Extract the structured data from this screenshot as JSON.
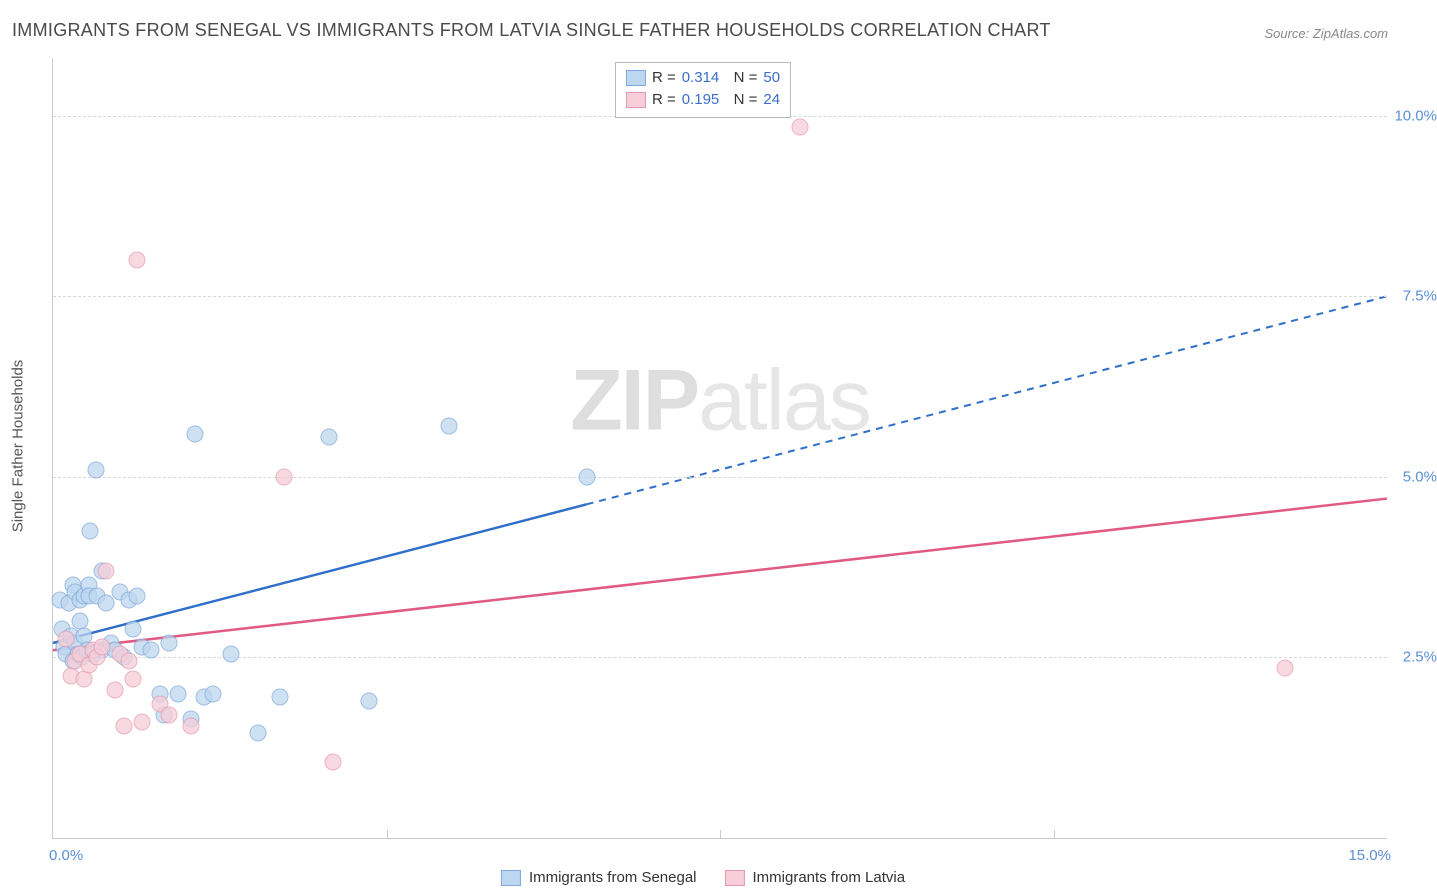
{
  "title": "IMMIGRANTS FROM SENEGAL VS IMMIGRANTS FROM LATVIA SINGLE FATHER HOUSEHOLDS CORRELATION CHART",
  "source": "Source: ZipAtlas.com",
  "y_label": "Single Father Households",
  "watermark_a": "ZIP",
  "watermark_b": "atlas",
  "chart": {
    "type": "scatter-with-regression",
    "background_color": "#ffffff",
    "grid_color": "#d8d8d8",
    "axis_color": "#cccccc",
    "tick_color": "#5b8fd6",
    "tick_fontsize": 15,
    "xlim": [
      0,
      15
    ],
    "ylim": [
      0,
      10.8
    ],
    "y_ticks": [
      {
        "v": 2.5,
        "label": "2.5%"
      },
      {
        "v": 5.0,
        "label": "5.0%"
      },
      {
        "v": 7.5,
        "label": "7.5%"
      },
      {
        "v": 10.0,
        "label": "10.0%"
      }
    ],
    "x_tick_left": "0.0%",
    "x_tick_right": "15.0%",
    "x_subticks": [
      3.75,
      7.5,
      11.25
    ],
    "point_radius": 7.5,
    "series": [
      {
        "name": "Immigrants from Senegal",
        "color_fill": "#bdd7f0",
        "color_stroke": "#7fa9d8",
        "line_color": "#2f6fc9",
        "r": "0.314",
        "n": "50",
        "regression": {
          "x1": 0,
          "y1": 2.7,
          "x2": 6.0,
          "y2": 4.55,
          "x3": 15.0,
          "y3": 7.5,
          "solid_until": 6.0
        },
        "points": [
          {
            "x": 0.08,
            "y": 3.3
          },
          {
            "x": 0.1,
            "y": 2.9
          },
          {
            "x": 0.12,
            "y": 2.65
          },
          {
            "x": 0.15,
            "y": 2.55
          },
          {
            "x": 0.18,
            "y": 3.25
          },
          {
            "x": 0.2,
            "y": 2.8
          },
          {
            "x": 0.22,
            "y": 2.45
          },
          {
            "x": 0.22,
            "y": 3.5
          },
          {
            "x": 0.25,
            "y": 2.7
          },
          {
            "x": 0.25,
            "y": 3.4
          },
          {
            "x": 0.28,
            "y": 2.55
          },
          {
            "x": 0.3,
            "y": 3.3
          },
          {
            "x": 0.3,
            "y": 3.0
          },
          {
            "x": 0.33,
            "y": 2.5
          },
          {
            "x": 0.35,
            "y": 2.8
          },
          {
            "x": 0.35,
            "y": 3.35
          },
          {
            "x": 0.38,
            "y": 2.6
          },
          {
            "x": 0.4,
            "y": 3.5
          },
          {
            "x": 0.4,
            "y": 3.35
          },
          {
            "x": 0.42,
            "y": 4.25
          },
          {
            "x": 0.45,
            "y": 2.55
          },
          {
            "x": 0.48,
            "y": 5.1
          },
          {
            "x": 0.5,
            "y": 3.35
          },
          {
            "x": 0.55,
            "y": 2.6
          },
          {
            "x": 0.55,
            "y": 3.7
          },
          {
            "x": 0.6,
            "y": 3.25
          },
          {
            "x": 0.65,
            "y": 2.7
          },
          {
            "x": 0.7,
            "y": 2.6
          },
          {
            "x": 0.75,
            "y": 3.4
          },
          {
            "x": 0.8,
            "y": 2.5
          },
          {
            "x": 0.85,
            "y": 3.3
          },
          {
            "x": 0.9,
            "y": 2.9
          },
          {
            "x": 0.95,
            "y": 3.35
          },
          {
            "x": 1.0,
            "y": 2.65
          },
          {
            "x": 1.1,
            "y": 2.6
          },
          {
            "x": 1.2,
            "y": 2.0
          },
          {
            "x": 1.25,
            "y": 1.7
          },
          {
            "x": 1.3,
            "y": 2.7
          },
          {
            "x": 1.4,
            "y": 2.0
          },
          {
            "x": 1.55,
            "y": 1.65
          },
          {
            "x": 1.6,
            "y": 5.6
          },
          {
            "x": 1.7,
            "y": 1.95
          },
          {
            "x": 1.8,
            "y": 2.0
          },
          {
            "x": 2.0,
            "y": 2.55
          },
          {
            "x": 2.3,
            "y": 1.45
          },
          {
            "x": 2.55,
            "y": 1.95
          },
          {
            "x": 3.1,
            "y": 5.55
          },
          {
            "x": 3.55,
            "y": 1.9
          },
          {
            "x": 4.45,
            "y": 5.7
          },
          {
            "x": 6.0,
            "y": 5.0
          }
        ]
      },
      {
        "name": "Immigrants from Latvia",
        "color_fill": "#f6cdd8",
        "color_stroke": "#e39bb0",
        "line_color": "#e05a82",
        "r": "0.195",
        "n": "24",
        "regression": {
          "x1": 0,
          "y1": 2.6,
          "x2": 15.0,
          "y2": 4.7,
          "solid_until": 15.0
        },
        "points": [
          {
            "x": 0.15,
            "y": 2.75
          },
          {
            "x": 0.2,
            "y": 2.25
          },
          {
            "x": 0.25,
            "y": 2.45
          },
          {
            "x": 0.3,
            "y": 2.55
          },
          {
            "x": 0.35,
            "y": 2.2
          },
          {
            "x": 0.4,
            "y": 2.4
          },
          {
            "x": 0.45,
            "y": 2.6
          },
          {
            "x": 0.5,
            "y": 2.5
          },
          {
            "x": 0.55,
            "y": 2.65
          },
          {
            "x": 0.6,
            "y": 3.7
          },
          {
            "x": 0.7,
            "y": 2.05
          },
          {
            "x": 0.75,
            "y": 2.55
          },
          {
            "x": 0.8,
            "y": 1.55
          },
          {
            "x": 0.85,
            "y": 2.45
          },
          {
            "x": 0.9,
            "y": 2.2
          },
          {
            "x": 0.95,
            "y": 8.0
          },
          {
            "x": 1.0,
            "y": 1.6
          },
          {
            "x": 1.2,
            "y": 1.85
          },
          {
            "x": 1.3,
            "y": 1.7
          },
          {
            "x": 1.55,
            "y": 1.55
          },
          {
            "x": 2.6,
            "y": 5.0
          },
          {
            "x": 3.15,
            "y": 1.05
          },
          {
            "x": 8.4,
            "y": 9.85
          },
          {
            "x": 13.85,
            "y": 2.35
          }
        ]
      }
    ]
  }
}
